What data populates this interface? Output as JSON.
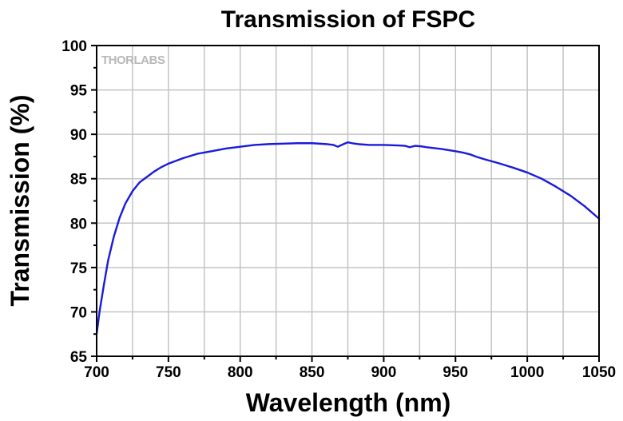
{
  "chart_data": {
    "type": "line",
    "title": "Transmission of FSPC",
    "xlabel": "Wavelength (nm)",
    "ylabel": "Transmission (%)",
    "xlim": [
      700,
      1050
    ],
    "ylim": [
      65,
      100
    ],
    "xticks": [
      700,
      750,
      800,
      850,
      900,
      950,
      1000,
      1050
    ],
    "yticks": [
      65,
      70,
      75,
      80,
      85,
      90,
      95,
      100
    ],
    "grid": true,
    "watermark": "THORLABS",
    "series": [
      {
        "color": "#1a1adb",
        "x": [
          700,
          702,
          705,
          708,
          712,
          716,
          720,
          725,
          730,
          735,
          740,
          745,
          750,
          755,
          760,
          770,
          780,
          790,
          800,
          810,
          820,
          830,
          840,
          850,
          860,
          865,
          868,
          872,
          875,
          878,
          882,
          890,
          900,
          910,
          915,
          918,
          922,
          926,
          930,
          940,
          950,
          955,
          960,
          965,
          970,
          980,
          990,
          1000,
          1010,
          1020,
          1030,
          1040,
          1050
        ],
        "y": [
          67.5,
          70.0,
          73.0,
          75.8,
          78.5,
          80.6,
          82.2,
          83.6,
          84.6,
          85.2,
          85.8,
          86.3,
          86.7,
          87.0,
          87.3,
          87.8,
          88.1,
          88.4,
          88.6,
          88.8,
          88.9,
          88.95,
          89.0,
          89.0,
          88.9,
          88.8,
          88.6,
          88.9,
          89.1,
          89.0,
          88.9,
          88.8,
          88.8,
          88.75,
          88.7,
          88.55,
          88.7,
          88.65,
          88.55,
          88.35,
          88.1,
          87.95,
          87.75,
          87.45,
          87.2,
          86.75,
          86.25,
          85.7,
          85.0,
          84.1,
          83.1,
          81.9,
          80.5
        ]
      }
    ]
  }
}
